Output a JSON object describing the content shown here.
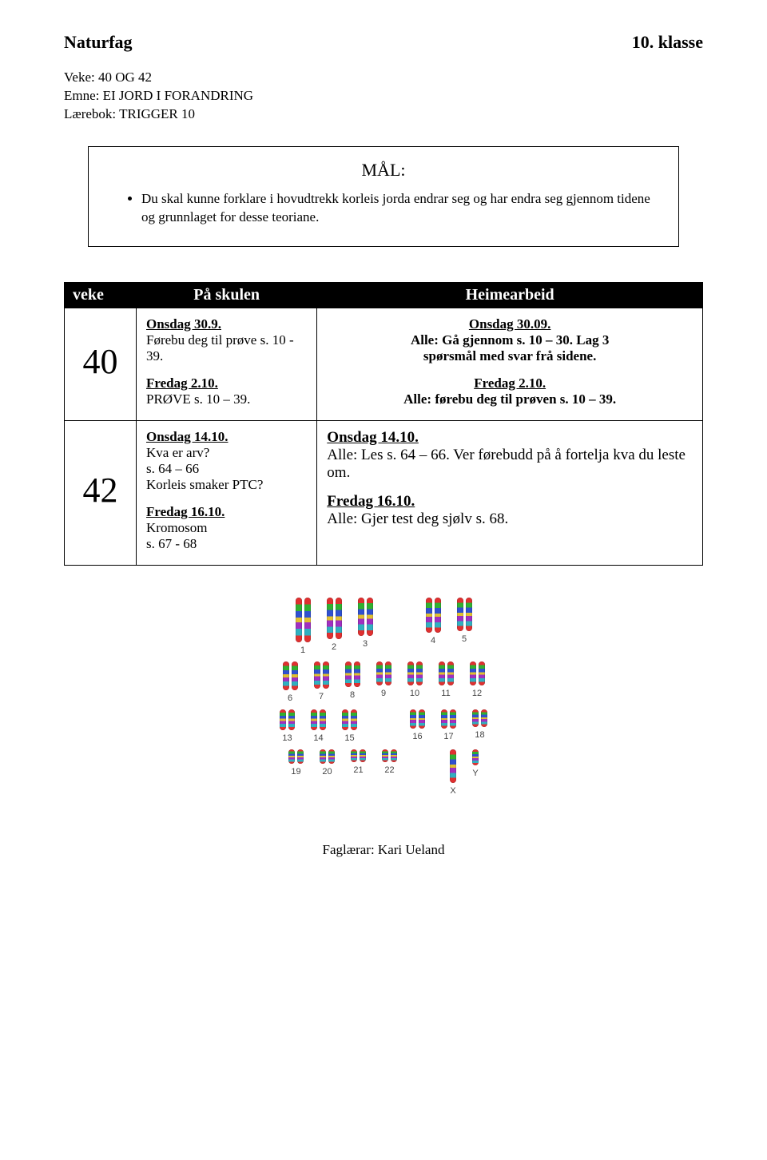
{
  "header": {
    "subject": "Naturfag",
    "grade": "10. klasse"
  },
  "meta": {
    "line1": "Veke: 40 OG 42",
    "line2": "Emne: EI JORD I FORANDRING",
    "line3": "Lærebok: TRIGGER 10"
  },
  "goal": {
    "title": "MÅL:",
    "item": "Du skal kunne forklare i hovudtrekk korleis jorda endrar seg og har endra seg gjennom tidene og grunnlaget for desse teoriane."
  },
  "table": {
    "headers": {
      "week": "veke",
      "school": "På skulen",
      "home": "Heimearbeid"
    },
    "bg_color": "#000000",
    "text_color": "#ffffff",
    "rows": [
      {
        "week": "40",
        "school": {
          "h1": "Onsdag 30.9.",
          "l1": "Førebu deg til prøve s. 10 - 39.",
          "h2": "Fredag 2.10.",
          "l2": "PRØVE  s. 10 – 39."
        },
        "home": {
          "h1": "Onsdag 30.09.",
          "l1a": "Alle: Gå gjennom s. 10 – 30. Lag 3",
          "l1b": "spørsmål med svar frå sidene.",
          "h2": "Fredag 2.10.",
          "l2": "Alle: førebu deg til prøven s. 10 – 39."
        }
      },
      {
        "week": "42",
        "school": {
          "h1": "Onsdag 14.10.",
          "l1": "Kva er arv?",
          "l2": "s. 64 – 66",
          "l3": "Korleis smaker PTC?",
          "h2": "Fredag 16.10.",
          "l4": "Kromosom",
          "l5": "s. 67 - 68"
        },
        "home": {
          "h1": "Onsdag 14.10.",
          "l1": "Alle: Les s. 64 – 66. Ver førebudd på å fortelja kva du leste om.",
          "h2": "Fredag 16.10.",
          "l2": "Alle: Gjer test deg sjølv s. 68."
        }
      }
    ]
  },
  "karyotype": {
    "rows": [
      {
        "labels": [
          "1",
          "2",
          "3",
          "4",
          "5"
        ],
        "heights": [
          56,
          52,
          48,
          44,
          42
        ],
        "extra_gap_after": 2
      },
      {
        "labels": [
          "6",
          "7",
          "8",
          "9",
          "10",
          "11",
          "12"
        ],
        "heights": [
          36,
          34,
          32,
          30,
          30,
          30,
          30
        ]
      },
      {
        "labels": [
          "13",
          "14",
          "15",
          "16",
          "17",
          "18"
        ],
        "heights": [
          26,
          26,
          26,
          24,
          24,
          22
        ],
        "extra_gap_after": 2
      },
      {
        "labels": [
          "19",
          "20",
          "21",
          "22",
          "X",
          "Y"
        ],
        "heights": [
          18,
          18,
          16,
          16,
          42,
          20
        ],
        "extra_gap_after": 3,
        "single_from": 4
      }
    ],
    "chrom_width": 8
  },
  "footer": "Faglærar: Kari Ueland"
}
